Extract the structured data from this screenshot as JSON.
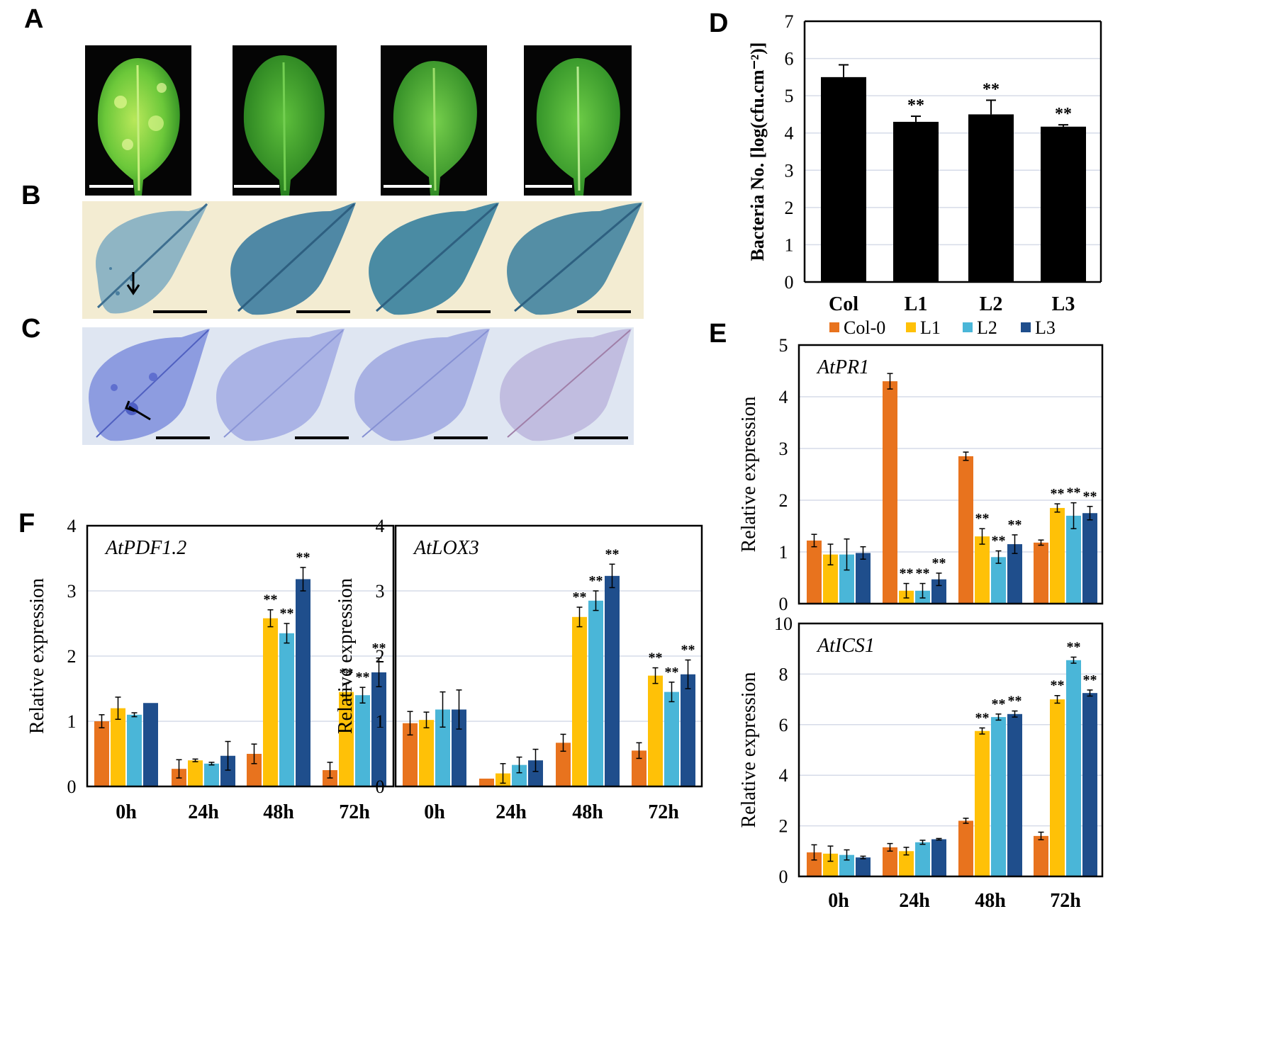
{
  "figure": {
    "panel_labels": [
      "A",
      "B",
      "C",
      "D",
      "E",
      "F"
    ],
    "lines": [
      "Col-0",
      "L1",
      "L2",
      "L3"
    ],
    "colors": {
      "col0": "#e8731e",
      "l1": "#ffc107",
      "l2": "#4ab6d8",
      "l3": "#1f4e8c",
      "bar_d": "#000000",
      "grid": "#d6dbe8",
      "leaf_a": "#3fae2a",
      "leaf_b": "#3b7f9a",
      "leaf_c": "#5a6fcb"
    },
    "significance_marker": "**"
  },
  "chart_data": [
    {
      "id": "D",
      "type": "bar",
      "categories": [
        "Col",
        "L1",
        "L2",
        "L3"
      ],
      "values": [
        5.5,
        4.3,
        4.5,
        4.17
      ],
      "errors": [
        0.33,
        0.15,
        0.38,
        0.05
      ],
      "significance": [
        "",
        "**",
        "**",
        "**"
      ],
      "ylabel": "Bacteria No. [log(cfu.cm⁻²)]",
      "ylim": [
        0,
        7
      ],
      "yticks": [
        0,
        1,
        2,
        3,
        4,
        5,
        6,
        7
      ],
      "grid": true
    },
    {
      "id": "E1",
      "type": "bar",
      "title": "AtPR1",
      "categories": [
        "0h",
        "24h",
        "48h",
        "72h"
      ],
      "series": [
        {
          "name": "Col-0",
          "values": [
            1.22,
            4.3,
            2.85,
            1.18
          ],
          "errors": [
            0.12,
            0.15,
            0.08,
            0.05
          ],
          "sig": [
            "",
            "",
            "",
            ""
          ]
        },
        {
          "name": "L1",
          "values": [
            0.95,
            0.25,
            1.3,
            1.85
          ],
          "errors": [
            0.2,
            0.14,
            0.15,
            0.08
          ],
          "sig": [
            "",
            "**",
            "**",
            "**"
          ]
        },
        {
          "name": "L2",
          "values": [
            0.95,
            0.25,
            0.9,
            1.7
          ],
          "errors": [
            0.3,
            0.14,
            0.12,
            0.25
          ],
          "sig": [
            "",
            "**",
            "**",
            "**"
          ]
        },
        {
          "name": "L3",
          "values": [
            0.98,
            0.47,
            1.15,
            1.75
          ],
          "errors": [
            0.12,
            0.12,
            0.18,
            0.13
          ],
          "sig": [
            "",
            "**",
            "**",
            "**"
          ]
        }
      ],
      "xlabel": "",
      "ylabel": "Relative expression",
      "ylim": [
        0,
        5
      ],
      "yticks": [
        0,
        1,
        2,
        3,
        4,
        5
      ],
      "grid": true,
      "legend": [
        "Col-0",
        "L1",
        "L2",
        "L3"
      ]
    },
    {
      "id": "E2",
      "type": "bar",
      "title": "AtICS1",
      "categories": [
        "0h",
        "24h",
        "48h",
        "72h"
      ],
      "series": [
        {
          "name": "Col-0",
          "values": [
            0.95,
            1.15,
            2.2,
            1.6
          ],
          "errors": [
            0.3,
            0.15,
            0.1,
            0.15
          ],
          "sig": [
            "",
            "",
            "",
            ""
          ]
        },
        {
          "name": "L1",
          "values": [
            0.9,
            1.0,
            5.75,
            7.0
          ],
          "errors": [
            0.3,
            0.15,
            0.12,
            0.15
          ],
          "sig": [
            "",
            "",
            "**",
            "**"
          ]
        },
        {
          "name": "L2",
          "values": [
            0.85,
            1.35,
            6.3,
            8.55
          ],
          "errors": [
            0.2,
            0.08,
            0.12,
            0.12
          ],
          "sig": [
            "",
            "",
            "**",
            "**"
          ]
        },
        {
          "name": "L3",
          "values": [
            0.75,
            1.47,
            6.42,
            7.25
          ],
          "errors": [
            0.05,
            0.03,
            0.12,
            0.12
          ],
          "sig": [
            "",
            "",
            "**",
            "**"
          ]
        }
      ],
      "xlabel": "",
      "ylabel": "Relative expression",
      "ylim": [
        0,
        10
      ],
      "yticks": [
        0,
        2,
        4,
        6,
        8,
        10
      ],
      "grid": true
    },
    {
      "id": "F1",
      "type": "bar",
      "title": "AtPDF1.2",
      "categories": [
        "0h",
        "24h",
        "48h",
        "72h"
      ],
      "series": [
        {
          "name": "Col-0",
          "values": [
            1.0,
            0.27,
            0.5,
            0.25
          ],
          "errors": [
            0.1,
            0.14,
            0.15,
            0.12
          ],
          "sig": [
            "",
            "",
            "",
            ""
          ]
        },
        {
          "name": "L1",
          "values": [
            1.2,
            0.4,
            2.58,
            1.45
          ],
          "errors": [
            0.17,
            0.02,
            0.13,
            0.13
          ],
          "sig": [
            "",
            "",
            "**",
            "**"
          ]
        },
        {
          "name": "L2",
          "values": [
            1.1,
            0.35,
            2.35,
            1.4
          ],
          "errors": [
            0.03,
            0.02,
            0.15,
            0.12
          ],
          "sig": [
            "",
            "",
            "**",
            "**"
          ]
        },
        {
          "name": "L3",
          "values": [
            1.28,
            0.47,
            3.18,
            1.75
          ],
          "errors": [
            0.0,
            0.22,
            0.18,
            0.22
          ],
          "sig": [
            "",
            "",
            "**",
            "**"
          ]
        }
      ],
      "xlabel": "",
      "ylabel": "Relative expression",
      "ylim": [
        0,
        4
      ],
      "yticks": [
        0,
        1,
        2,
        3,
        4
      ],
      "grid": true
    },
    {
      "id": "F2",
      "type": "bar",
      "title": "AtLOX3",
      "categories": [
        "0h",
        "24h",
        "48h",
        "72h"
      ],
      "series": [
        {
          "name": "Col-0",
          "values": [
            0.97,
            0.12,
            0.67,
            0.55
          ],
          "errors": [
            0.18,
            0.0,
            0.13,
            0.12
          ],
          "sig": [
            "",
            "",
            "",
            ""
          ]
        },
        {
          "name": "L1",
          "values": [
            1.02,
            0.2,
            2.6,
            1.7
          ],
          "errors": [
            0.12,
            0.15,
            0.15,
            0.12
          ],
          "sig": [
            "",
            "",
            "**",
            "**"
          ]
        },
        {
          "name": "L2",
          "values": [
            1.18,
            0.33,
            2.85,
            1.45
          ],
          "errors": [
            0.27,
            0.12,
            0.15,
            0.15
          ],
          "sig": [
            "",
            "",
            "**",
            "**"
          ]
        },
        {
          "name": "L3",
          "values": [
            1.18,
            0.4,
            3.23,
            1.72
          ],
          "errors": [
            0.3,
            0.17,
            0.18,
            0.22
          ],
          "sig": [
            "",
            "",
            "**",
            "**"
          ]
        }
      ],
      "xlabel": "",
      "ylabel": "Relative expression",
      "ylim": [
        0,
        4
      ],
      "yticks": [
        0,
        1,
        2,
        3,
        4
      ],
      "grid": true
    }
  ]
}
